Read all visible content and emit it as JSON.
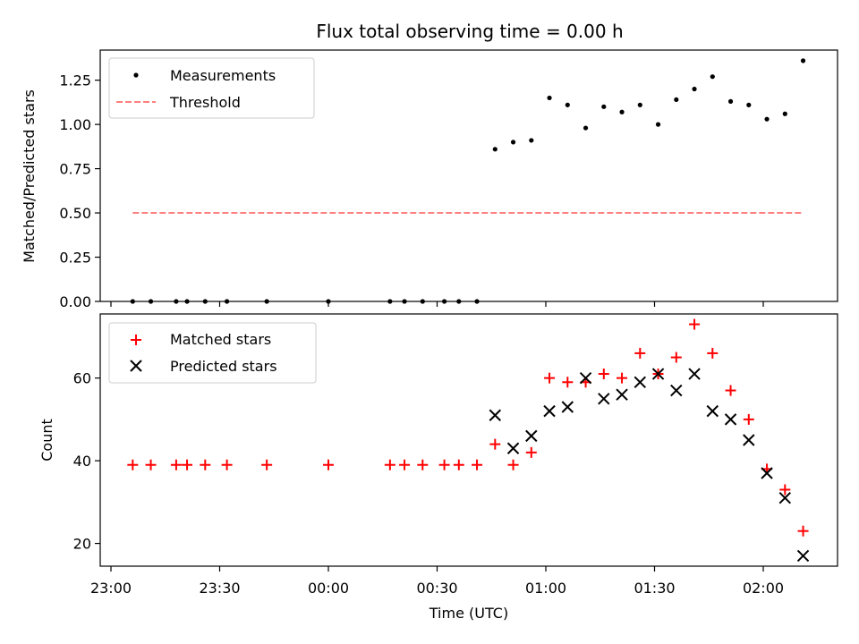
{
  "chart_data": [
    {
      "type": "scatter",
      "title": "Flux total observing time = 0.00 h",
      "xlabel": "",
      "ylabel": "Matched/Predicted stars",
      "ylim": [
        0,
        1.42
      ],
      "yticks": [
        0.0,
        0.25,
        0.5,
        0.75,
        1.0,
        1.25
      ],
      "ytick_labels": [
        "0.00",
        "0.25",
        "0.50",
        "0.75",
        "1.00",
        "1.25"
      ],
      "legend": {
        "placement": "top-left",
        "entries": [
          "Measurements",
          "Threshold"
        ]
      },
      "series": [
        {
          "name": "Measurements",
          "marker": "dot",
          "color": "#000000",
          "points": [
            [
              "23:06",
              0.0
            ],
            [
              "23:11",
              0.0
            ],
            [
              "23:18",
              0.0
            ],
            [
              "23:21",
              0.0
            ],
            [
              "23:26",
              0.0
            ],
            [
              "23:32",
              0.0
            ],
            [
              "23:43",
              0.0
            ],
            [
              "00:00",
              0.0
            ],
            [
              "00:17",
              0.0
            ],
            [
              "00:21",
              0.0
            ],
            [
              "00:26",
              0.0
            ],
            [
              "00:32",
              0.0
            ],
            [
              "00:36",
              0.0
            ],
            [
              "00:41",
              0.0
            ],
            [
              "00:46",
              0.86
            ],
            [
              "00:51",
              0.9
            ],
            [
              "00:56",
              0.91
            ],
            [
              "01:01",
              1.15
            ],
            [
              "01:06",
              1.11
            ],
            [
              "01:11",
              0.98
            ],
            [
              "01:16",
              1.1
            ],
            [
              "01:21",
              1.07
            ],
            [
              "01:26",
              1.11
            ],
            [
              "01:31",
              1.0
            ],
            [
              "01:36",
              1.14
            ],
            [
              "01:41",
              1.2
            ],
            [
              "01:46",
              1.27
            ],
            [
              "01:51",
              1.13
            ],
            [
              "01:56",
              1.11
            ],
            [
              "02:01",
              1.03
            ],
            [
              "02:06",
              1.06
            ],
            [
              "02:11",
              1.36
            ]
          ]
        },
        {
          "name": "Threshold",
          "line": "dashed",
          "color": "#ff7f7f",
          "points": [
            [
              "23:06",
              0.5
            ],
            [
              "02:11",
              0.5
            ]
          ]
        }
      ]
    },
    {
      "type": "scatter",
      "title": "",
      "xlabel": "Time (UTC)",
      "ylabel": "Count",
      "ylim": [
        14.5,
        75.5
      ],
      "yticks": [
        20,
        40,
        60
      ],
      "ytick_labels": [
        "20",
        "40",
        "60"
      ],
      "xticks": [
        "23:00",
        "23:30",
        "00:00",
        "00:30",
        "01:00",
        "01:30",
        "02:00"
      ],
      "legend": {
        "placement": "top-left",
        "entries": [
          "Matched stars",
          "Predicted stars"
        ]
      },
      "series": [
        {
          "name": "Matched stars",
          "marker": "plus",
          "color": "#ff0000",
          "points": [
            [
              "23:06",
              39
            ],
            [
              "23:11",
              39
            ],
            [
              "23:18",
              39
            ],
            [
              "23:21",
              39
            ],
            [
              "23:26",
              39
            ],
            [
              "23:32",
              39
            ],
            [
              "23:43",
              39
            ],
            [
              "00:00",
              39
            ],
            [
              "00:17",
              39
            ],
            [
              "00:21",
              39
            ],
            [
              "00:26",
              39
            ],
            [
              "00:32",
              39
            ],
            [
              "00:36",
              39
            ],
            [
              "00:41",
              39
            ],
            [
              "00:46",
              44
            ],
            [
              "00:51",
              39
            ],
            [
              "00:56",
              42
            ],
            [
              "01:01",
              60
            ],
            [
              "01:06",
              59
            ],
            [
              "01:11",
              59
            ],
            [
              "01:16",
              61
            ],
            [
              "01:21",
              60
            ],
            [
              "01:26",
              66
            ],
            [
              "01:31",
              61
            ],
            [
              "01:36",
              65
            ],
            [
              "01:41",
              73
            ],
            [
              "01:46",
              66
            ],
            [
              "01:51",
              57
            ],
            [
              "01:56",
              50
            ],
            [
              "02:01",
              38
            ],
            [
              "02:06",
              33
            ],
            [
              "02:11",
              23
            ]
          ]
        },
        {
          "name": "Predicted stars",
          "marker": "x",
          "color": "#000000",
          "points": [
            [
              "00:46",
              51
            ],
            [
              "00:51",
              43
            ],
            [
              "00:56",
              46
            ],
            [
              "01:01",
              52
            ],
            [
              "01:06",
              53
            ],
            [
              "01:11",
              60
            ],
            [
              "01:16",
              55
            ],
            [
              "01:21",
              56
            ],
            [
              "01:26",
              59
            ],
            [
              "01:31",
              61
            ],
            [
              "01:36",
              57
            ],
            [
              "01:41",
              61
            ],
            [
              "01:46",
              52
            ],
            [
              "01:51",
              50
            ],
            [
              "01:56",
              45
            ],
            [
              "02:01",
              37
            ],
            [
              "02:06",
              31
            ],
            [
              "02:11",
              17
            ]
          ]
        }
      ]
    }
  ]
}
